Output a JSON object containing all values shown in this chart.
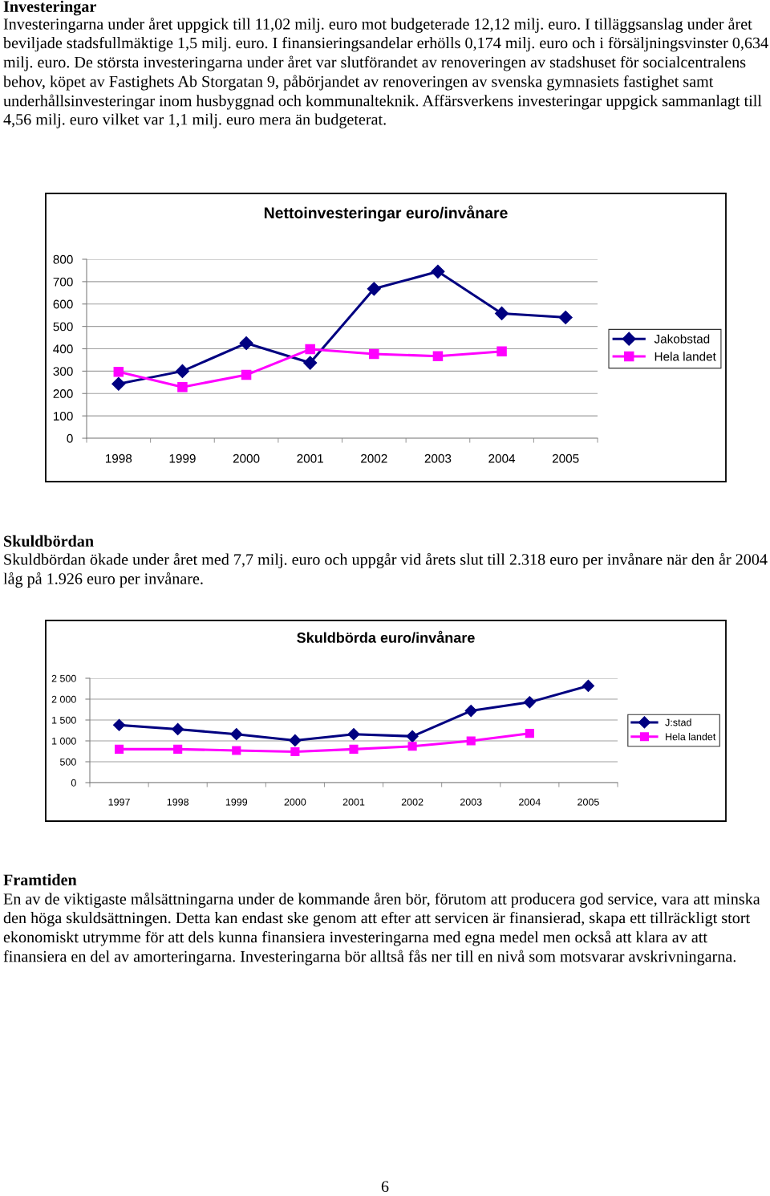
{
  "chart_data": [
    {
      "type": "line",
      "title": "Nettoinvesteringar euro/invånare",
      "categories": [
        "1998",
        "1999",
        "2000",
        "2001",
        "2002",
        "2003",
        "2004",
        "2005"
      ],
      "series": [
        {
          "name": "Jakobstad",
          "color": "#000080",
          "marker": "diamond",
          "values": [
            243,
            300,
            425,
            337,
            668,
            745,
            558,
            540
          ]
        },
        {
          "name": "Hela landet",
          "color": "#ff00ff",
          "marker": "square",
          "values": [
            297,
            229,
            283,
            398,
            377,
            367,
            388,
            null
          ]
        }
      ],
      "ylim": [
        0,
        800
      ],
      "yticks": [
        0,
        100,
        200,
        300,
        400,
        500,
        600,
        700,
        800
      ],
      "grid": "y",
      "legend": "right",
      "line_style": "solid",
      "annotations": [
        "Investeringar",
        "Investeringarna under året uppgick till 11,02 milj. euro mot budgeterade 12,12 milj. euro. I tilläggsanslag under året beviljade stadsfullmäktige 1,5 milj. euro. I finansieringsandelar erhölls 0,174 milj. euro och i försäljningsvinster 0,634 milj. euro. De största investeringarna under året var slutförandet av renoveringen av stadshuset för socialcentralens behov, köpet av Fastighets Ab Storgatan 9, påbörjandet av renoveringen av svenska gymnasiets fastighet samt underhållsinvesteringar inom husbyggnad och kommunalteknik. Affärsverkens investeringar uppgick sammanlagt till 4,56 milj. euro vilket var 1,1 milj. euro mera än budgeterat."
      ]
    },
    {
      "type": "line",
      "title": "Skuldbörda euro/invånare",
      "categories": [
        "1997",
        "1998",
        "1999",
        "2000",
        "2001",
        "2002",
        "2003",
        "2004",
        "2005"
      ],
      "series": [
        {
          "name": "J:stad",
          "color": "#000080",
          "marker": "diamond",
          "values": [
            1380,
            1280,
            1160,
            1010,
            1160,
            1110,
            1720,
            1926,
            2318
          ]
        },
        {
          "name": "Hela landet",
          "color": "#ff00ff",
          "marker": "square",
          "values": [
            800,
            800,
            770,
            740,
            800,
            870,
            1000,
            1180,
            null
          ]
        }
      ],
      "ylim": [
        0,
        2500
      ],
      "yticks": [
        0,
        500,
        {
          "value": 1000,
          "label": "1 000"
        },
        {
          "value": 1500,
          "label": "1 500"
        },
        {
          "value": 2000,
          "label": "2 000"
        },
        {
          "value": 2500,
          "label": "2 500"
        }
      ],
      "grid": "y",
      "legend": "right",
      "line_style": "solid",
      "annotations": [
        "Skuldbördan",
        "Skuldbördan ökade under året med 7,7 milj. euro och uppgår vid årets slut till 2.318 euro per invånare när den år 2004 låg på 1.926 euro per invånare.",
        "Framtiden",
        "En av de viktigaste målsättningarna under de kommande åren bör, förutom att producera god service, vara att minska den höga skuldsättningen. Detta kan endast ske genom att efter att servicen är finansierad, skapa ett tillräckligt stort ekonomiskt utrymme för att dels kunna finansiera investeringarna med egna medel men också att klara av att finansiera en del av amorteringarna. Investeringarna bör alltså fås ner till en nivå som motsvarar avskrivningarna.",
        "6"
      ]
    }
  ]
}
